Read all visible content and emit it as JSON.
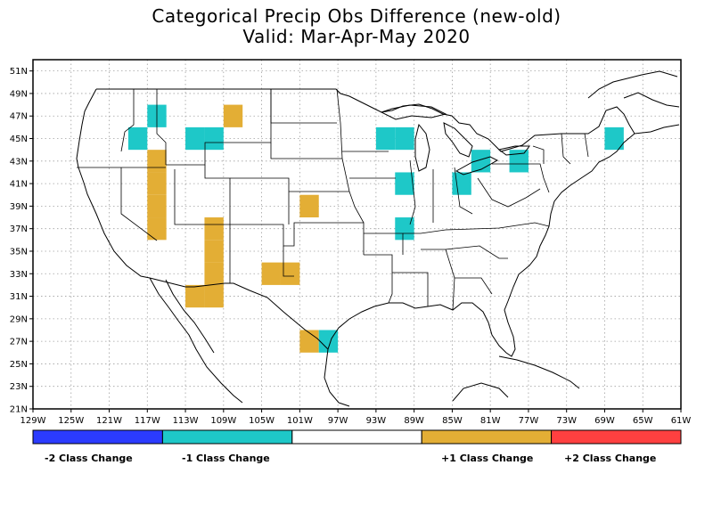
{
  "title": "Categorical Precip Obs Difference (new-old)",
  "subtitle": "Valid: Mar-Apr-May 2020",
  "x_ticks": [
    "129W",
    "125W",
    "121W",
    "117W",
    "113W",
    "109W",
    "105W",
    "101W",
    "97W",
    "93W",
    "89W",
    "85W",
    "81W",
    "77W",
    "73W",
    "69W",
    "65W",
    "61W"
  ],
  "y_ticks": [
    "51N",
    "49N",
    "47N",
    "45N",
    "43N",
    "41N",
    "39N",
    "37N",
    "35N",
    "33N",
    "31N",
    "29N",
    "27N",
    "25N",
    "23N",
    "21N"
  ],
  "colors": {
    "minus2": "#2b3bff",
    "minus1": "#1ec8c8",
    "neutral": "#ffffff",
    "plus1": "#e3ae35",
    "plus2": "#ff4040"
  },
  "legend": [
    {
      "label": "-2 Class Change",
      "color_key": "minus2"
    },
    {
      "label": "-1 Class Change",
      "color_key": "minus1"
    },
    {
      "label": "",
      "color_key": "neutral"
    },
    {
      "label": "+1 Class Change",
      "color_key": "plus1"
    },
    {
      "label": "+2 Class Change",
      "color_key": "plus2"
    }
  ],
  "map_data": {
    "lon_range": [
      -129,
      -61
    ],
    "lat_range": [
      21,
      52
    ],
    "grid": true,
    "cells": [
      {
        "lon": -118,
        "lat": 45,
        "class": -1
      },
      {
        "lon": -116,
        "lat": 47,
        "class": -1
      },
      {
        "lon": -112,
        "lat": 45,
        "class": -1
      },
      {
        "lon": -110,
        "lat": 45,
        "class": -1
      },
      {
        "lon": -108,
        "lat": 47,
        "class": 1
      },
      {
        "lon": -116,
        "lat": 41,
        "class": 1
      },
      {
        "lon": -116,
        "lat": 43,
        "class": 1
      },
      {
        "lon": -116,
        "lat": 37,
        "class": 1
      },
      {
        "lon": -116,
        "lat": 39,
        "class": 1
      },
      {
        "lon": -110,
        "lat": 35,
        "class": 1
      },
      {
        "lon": -110,
        "lat": 33,
        "class": 1
      },
      {
        "lon": -110,
        "lat": 31,
        "class": 1
      },
      {
        "lon": -112,
        "lat": 31,
        "class": 1
      },
      {
        "lon": -110,
        "lat": 37,
        "class": 1
      },
      {
        "lon": -104,
        "lat": 33,
        "class": 1
      },
      {
        "lon": -102,
        "lat": 33,
        "class": 1
      },
      {
        "lon": -100,
        "lat": 39,
        "class": 1
      },
      {
        "lon": -100,
        "lat": 27,
        "class": 1
      },
      {
        "lon": -98,
        "lat": 27,
        "class": -1
      },
      {
        "lon": -92,
        "lat": 45,
        "class": -1
      },
      {
        "lon": -90,
        "lat": 45,
        "class": -1
      },
      {
        "lon": -90,
        "lat": 41,
        "class": -1
      },
      {
        "lon": -90,
        "lat": 37,
        "class": -1
      },
      {
        "lon": -84,
        "lat": 41,
        "class": -1
      },
      {
        "lon": -82,
        "lat": 43,
        "class": -1
      },
      {
        "lon": -78,
        "lat": 43,
        "class": -1
      },
      {
        "lon": -68,
        "lat": 45,
        "class": -1
      }
    ]
  }
}
